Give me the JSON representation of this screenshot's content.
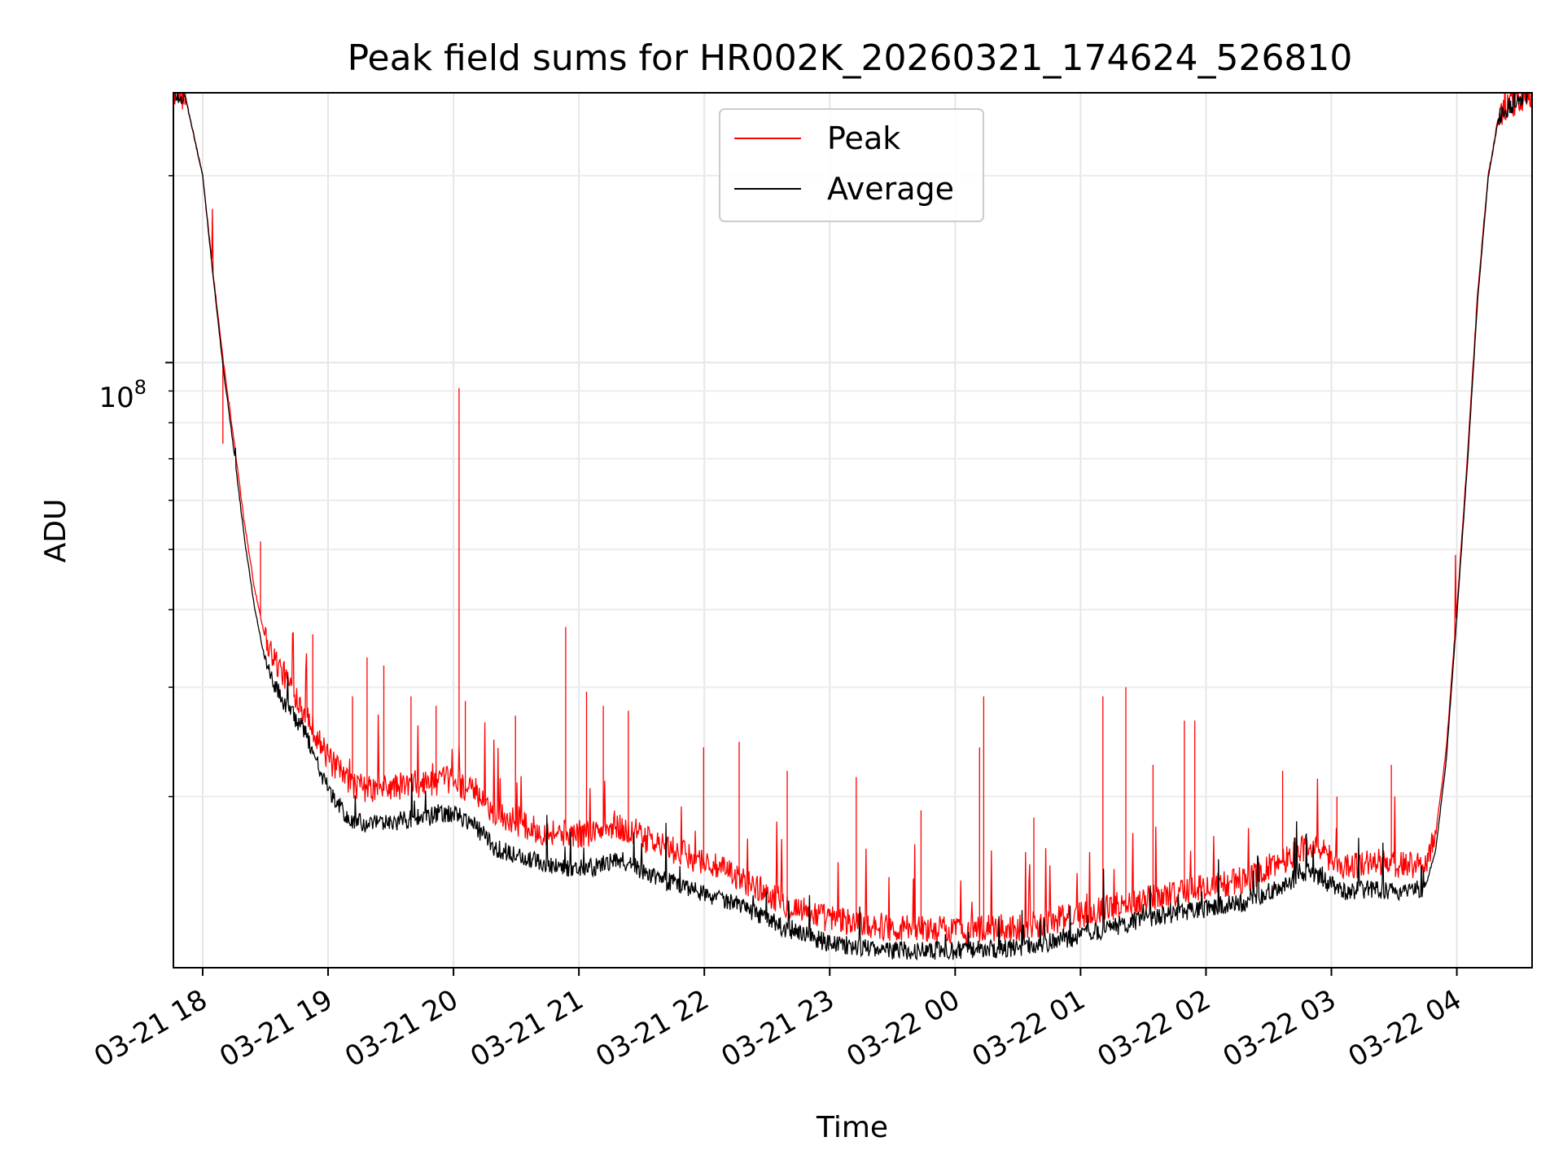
{
  "chart_data": {
    "type": "line",
    "title": "Peak field sums for HR002K_20260321_174624_526810",
    "xlabel": "Time",
    "ylabel": "ADU",
    "yscale": "log",
    "grid": true,
    "legend_position": "top-center",
    "xlim": [
      "2026-03-21 17:46",
      "2026-03-22 04:36"
    ],
    "ylim": [
      10600000,
      272000000
    ],
    "x_ticks": [
      "03-21 18",
      "03-21 19",
      "03-21 20",
      "03-21 21",
      "03-21 22",
      "03-21 23",
      "03-22 00",
      "03-22 01",
      "03-22 02",
      "03-22 03",
      "03-22 04"
    ],
    "y_tick_label_base": "10",
    "y_tick_label_exponent": "8",
    "y_tick_value": 100000000,
    "y_minor_ticks": [
      20000000,
      30000000,
      40000000,
      50000000,
      60000000,
      70000000,
      80000000,
      90000000,
      200000000
    ],
    "series": [
      {
        "name": "Peak",
        "color": "#ff0000",
        "x": [
          "2026-03-21 17:46",
          "2026-03-21 17:52",
          "2026-03-21 18:00",
          "2026-03-21 18:06",
          "2026-03-21 18:10",
          "2026-03-21 18:15",
          "2026-03-21 18:20",
          "2026-03-21 18:25",
          "2026-03-21 18:30",
          "2026-03-21 18:35",
          "2026-03-21 18:40",
          "2026-03-21 18:45",
          "2026-03-21 18:50",
          "2026-03-21 19:00",
          "2026-03-21 19:10",
          "2026-03-21 19:20",
          "2026-03-21 19:30",
          "2026-03-21 19:45",
          "2026-03-21 20:00",
          "2026-03-21 20:10",
          "2026-03-21 20:20",
          "2026-03-21 20:40",
          "2026-03-21 21:00",
          "2026-03-21 21:20",
          "2026-03-21 21:40",
          "2026-03-21 22:00",
          "2026-03-21 22:20",
          "2026-03-21 22:40",
          "2026-03-21 23:00",
          "2026-03-21 23:30",
          "2026-03-22 00:00",
          "2026-03-22 00:30",
          "2026-03-22 01:00",
          "2026-03-22 01:30",
          "2026-03-22 02:00",
          "2026-03-22 02:20",
          "2026-03-22 02:35",
          "2026-03-22 02:50",
          "2026-03-22 03:05",
          "2026-03-22 03:20",
          "2026-03-22 03:35",
          "2026-03-22 03:45",
          "2026-03-22 03:50",
          "2026-03-22 03:55",
          "2026-03-22 04:00",
          "2026-03-22 04:05",
          "2026-03-22 04:10",
          "2026-03-22 04:15",
          "2026-03-22 04:20",
          "2026-03-22 04:25",
          "2026-03-22 04:36"
        ],
        "y": [
          272000000,
          265000000,
          200000000,
          130000000,
          100000000,
          75000000,
          55000000,
          43000000,
          36000000,
          33000000,
          31000000,
          29000000,
          27000000,
          23000000,
          21000000,
          20500000,
          20700000,
          21000000,
          21300000,
          20200000,
          18800000,
          17600000,
          17400000,
          17800000,
          16600000,
          15700000,
          14600000,
          13400000,
          12700000,
          12300000,
          12200000,
          12300000,
          12900000,
          13700000,
          14300000,
          14700000,
          15700000,
          16800000,
          15400000,
          15700000,
          15500000,
          15600000,
          17500000,
          24000000,
          40000000,
          70000000,
          130000000,
          200000000,
          250000000,
          260000000,
          272000000
        ],
        "spikes": [
          [
            "2026-03-21 18:10",
            74000000
          ],
          [
            "2026-03-21 18:28",
            51500000
          ],
          [
            "2026-03-21 18:53",
            36500000
          ],
          [
            "2026-03-21 19:12",
            29000000
          ],
          [
            "2026-03-21 19:19",
            33500000
          ],
          [
            "2026-03-21 19:27",
            32500000
          ],
          [
            "2026-03-21 19:40",
            29000000
          ],
          [
            "2026-03-21 19:52",
            28000000
          ],
          [
            "2026-03-21 20:03",
            91000000
          ],
          [
            "2026-03-21 20:06",
            28500000
          ],
          [
            "2026-03-21 20:30",
            27000000
          ],
          [
            "2026-03-21 20:54",
            37500000
          ],
          [
            "2026-03-21 21:04",
            29500000
          ],
          [
            "2026-03-21 21:12",
            28000000
          ],
          [
            "2026-03-21 21:24",
            27500000
          ],
          [
            "2026-03-21 21:60",
            24000000
          ],
          [
            "2026-03-21 22:17",
            24500000
          ],
          [
            "2026-03-21 22:40",
            22000000
          ],
          [
            "2026-03-21 23:13",
            21500000
          ],
          [
            "2026-03-21 23:44",
            19000000
          ],
          [
            "2026-03-22 00:12",
            24000000
          ],
          [
            "2026-03-22 00:14",
            29000000
          ],
          [
            "2026-03-22 00:38",
            18500000
          ],
          [
            "2026-03-22 01:11",
            29000000
          ],
          [
            "2026-03-22 01:22",
            30000000
          ],
          [
            "2026-03-22 01:35",
            22500000
          ],
          [
            "2026-03-22 01:50",
            26500000
          ],
          [
            "2026-03-22 01:55",
            26500000
          ],
          [
            "2026-03-22 02:37",
            22000000
          ],
          [
            "2026-03-22 03:03",
            20000000
          ],
          [
            "2026-03-22 03:29",
            22500000
          ]
        ]
      },
      {
        "name": "Average",
        "color": "#000000",
        "x": [
          "2026-03-21 17:46",
          "2026-03-21 17:52",
          "2026-03-21 18:00",
          "2026-03-21 18:06",
          "2026-03-21 18:10",
          "2026-03-21 18:15",
          "2026-03-21 18:20",
          "2026-03-21 18:25",
          "2026-03-21 18:30",
          "2026-03-21 18:35",
          "2026-03-21 18:40",
          "2026-03-21 18:45",
          "2026-03-21 18:50",
          "2026-03-21 19:00",
          "2026-03-21 19:10",
          "2026-03-21 19:20",
          "2026-03-21 19:30",
          "2026-03-21 19:45",
          "2026-03-21 20:00",
          "2026-03-21 20:10",
          "2026-03-21 20:20",
          "2026-03-21 20:40",
          "2026-03-21 21:00",
          "2026-03-21 21:20",
          "2026-03-21 21:40",
          "2026-03-21 22:00",
          "2026-03-21 22:20",
          "2026-03-21 22:40",
          "2026-03-21 23:00",
          "2026-03-21 23:30",
          "2026-03-22 00:00",
          "2026-03-22 00:30",
          "2026-03-22 01:00",
          "2026-03-22 01:30",
          "2026-03-22 02:00",
          "2026-03-22 02:20",
          "2026-03-22 02:35",
          "2026-03-22 02:50",
          "2026-03-22 03:05",
          "2026-03-22 03:20",
          "2026-03-22 03:35",
          "2026-03-22 03:45",
          "2026-03-22 03:50",
          "2026-03-22 03:55",
          "2026-03-22 04:00",
          "2026-03-22 04:05",
          "2026-03-22 04:10",
          "2026-03-22 04:15",
          "2026-03-22 04:20",
          "2026-03-22 04:25",
          "2026-03-22 04:36"
        ],
        "y": [
          272000000,
          265000000,
          200000000,
          128000000,
          97000000,
          72000000,
          52000000,
          40000000,
          33000000,
          30000000,
          28000000,
          26500000,
          25000000,
          20500000,
          18300000,
          18000000,
          18200000,
          18500000,
          18800000,
          18000000,
          16500000,
          15700000,
          15200000,
          15800000,
          14700000,
          14000000,
          13200000,
          12200000,
          11600000,
          11300000,
          11300000,
          11400000,
          11900000,
          12700000,
          13200000,
          13500000,
          14300000,
          15200000,
          14000000,
          14200000,
          14000000,
          14300000,
          16500000,
          23000000,
          39000000,
          68000000,
          127000000,
          198000000,
          248000000,
          258000000,
          272000000
        ]
      }
    ]
  }
}
